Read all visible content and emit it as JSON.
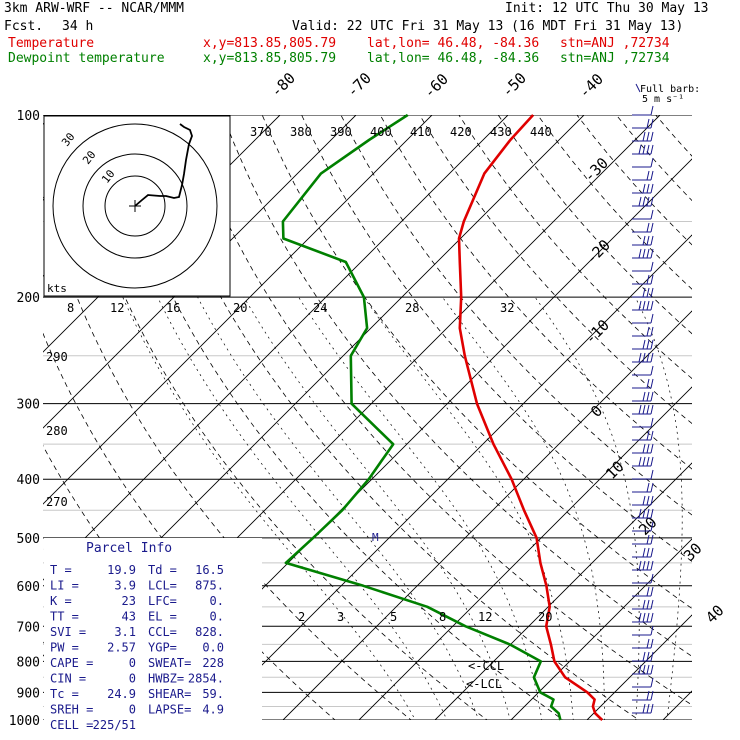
{
  "header": {
    "model": "3km ARW-WRF -- NCAR/MMM",
    "init": "Init: 12 UTC Thu 30 May 13",
    "fcst_label": "Fcst.",
    "fcst_value": "34 h",
    "valid": "Valid: 22 UTC Fri 31 May 13 (16 MDT Fri 31 May 13)",
    "temp_label": "Temperature",
    "dew_label": "Dewpoint temperature",
    "xy": "x,y=813.85,805.79",
    "latlon": "lat,lon= 46.48, -84.36",
    "stn": "stn=ANJ ,72734"
  },
  "colors": {
    "temperature": "#e00000",
    "dewpoint": "#008000",
    "label_blue": "#1a1a8c",
    "barb": "#1a1a8c"
  },
  "barb_key": {
    "line1": "Full barb:",
    "line2": "5 m s⁻¹"
  },
  "hodograph": {
    "units": "kts",
    "rings": [
      "10",
      "20",
      "30"
    ]
  },
  "parcel_info": {
    "title": "Parcel Info",
    "rows": [
      [
        "T  =",
        "19.9",
        "Td =",
        "16.5"
      ],
      [
        "LI =",
        "3.9",
        "LCL=",
        "875."
      ],
      [
        "K  =",
        "23",
        "LFC=",
        "0."
      ],
      [
        "TT =",
        "43",
        "EL =",
        "0."
      ],
      [
        "SVI =",
        "3.1",
        "CCL=",
        "828."
      ],
      [
        "PW =",
        "2.57",
        "YGP=",
        "0.0"
      ],
      [
        "CAPE =",
        "0",
        "SWEAT=",
        "228"
      ],
      [
        "CIN =",
        "0",
        "HWBZ=",
        "2854."
      ],
      [
        "Tc =",
        "24.9",
        "SHEAR=",
        "59."
      ],
      [
        "SREH =",
        "0",
        "LAPSE=",
        "4.9"
      ],
      [
        "CELL =",
        "225/51",
        "",
        ""
      ]
    ]
  },
  "markers": {
    "ccl": "<-CCL",
    "lcl": "<-LCL",
    "m": "M"
  },
  "chart_data": {
    "type": "line",
    "chart_kind": "skew-T log-P",
    "y_axis": {
      "label": "Pressure (hPa)",
      "ticks": [
        100,
        200,
        300,
        400,
        500,
        600,
        700,
        800,
        900,
        1000
      ],
      "scale": "log",
      "range": [
        1000,
        100
      ]
    },
    "x_axis": {
      "label": "Temperature",
      "ticks": [
        -80,
        -70,
        -60,
        -50,
        -40,
        -30,
        -20,
        -10,
        0,
        10,
        20,
        30,
        40
      ]
    },
    "theta_labels": [
      "370",
      "380",
      "390",
      "400",
      "410",
      "420",
      "430",
      "440"
    ],
    "mixing_ratio_upper": [
      "8",
      "12",
      "16",
      "20",
      "24",
      "28",
      "32"
    ],
    "mixing_ratio_lower": [
      "2",
      "3",
      "5",
      "8",
      "12",
      "20"
    ],
    "dry_adiabat_side_labels": [
      "290",
      "280",
      "270"
    ],
    "series": [
      {
        "name": "Temperature",
        "color": "#e00000",
        "points": [
          [
            1000,
            22.0
          ],
          [
            975,
            20.2
          ],
          [
            950,
            19.0
          ],
          [
            925,
            18.3
          ],
          [
            900,
            16.4
          ],
          [
            850,
            11.5
          ],
          [
            800,
            8.0
          ],
          [
            750,
            5.3
          ],
          [
            700,
            2.3
          ],
          [
            650,
            0.2
          ],
          [
            600,
            -3.0
          ],
          [
            550,
            -6.8
          ],
          [
            500,
            -10.6
          ],
          [
            450,
            -15.9
          ],
          [
            400,
            -21.6
          ],
          [
            350,
            -28.6
          ],
          [
            300,
            -36.1
          ],
          [
            250,
            -44.0
          ],
          [
            225,
            -48.3
          ],
          [
            200,
            -52.2
          ],
          [
            175,
            -57.0
          ],
          [
            160,
            -60.2
          ],
          [
            150,
            -61.8
          ],
          [
            125,
            -65.4
          ],
          [
            110,
            -66.4
          ],
          [
            100,
            -66.7
          ]
        ]
      },
      {
        "name": "Dewpoint temperature",
        "color": "#008000",
        "points": [
          [
            1000,
            16.5
          ],
          [
            975,
            15.4
          ],
          [
            950,
            13.5
          ],
          [
            925,
            12.9
          ],
          [
            900,
            10.2
          ],
          [
            850,
            7.4
          ],
          [
            800,
            6.2
          ],
          [
            750,
            -0.1
          ],
          [
            700,
            -8.3
          ],
          [
            650,
            -15.9
          ],
          [
            600,
            -27.1
          ],
          [
            550,
            -40.3
          ],
          [
            500,
            -40.0
          ],
          [
            450,
            -39.8
          ],
          [
            400,
            -40.4
          ],
          [
            350,
            -41.8
          ],
          [
            300,
            -52.6
          ],
          [
            250,
            -59.0
          ],
          [
            225,
            -60.5
          ],
          [
            200,
            -65.0
          ],
          [
            175,
            -72.0
          ],
          [
            160,
            -83.3
          ],
          [
            150,
            -85.6
          ],
          [
            125,
            -86.9
          ],
          [
            110,
            -85.0
          ],
          [
            100,
            -83.2
          ]
        ]
      }
    ]
  }
}
